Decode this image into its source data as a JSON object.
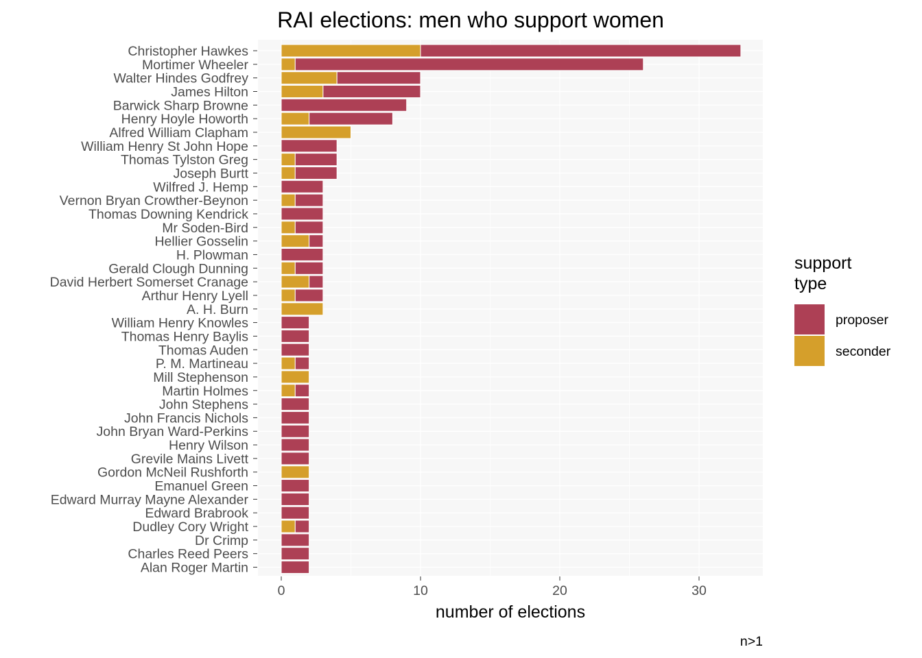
{
  "chart_data": {
    "type": "bar",
    "orientation": "horizontal",
    "stacked": true,
    "title": "RAI elections: men who support women",
    "xlabel": "number of elections",
    "ylabel": "",
    "caption": "n>1",
    "xlim": [
      0,
      34
    ],
    "xticks": [
      0,
      10,
      20,
      30
    ],
    "grid": true,
    "legend": {
      "title_lines": [
        "support",
        "type"
      ],
      "position": "right",
      "entries": [
        {
          "name": "proposer",
          "color": "#ad4055"
        },
        {
          "name": "seconder",
          "color": "#d59f2b"
        }
      ]
    },
    "categories": [
      "Christopher Hawkes",
      "Mortimer Wheeler",
      "Walter Hindes Godfrey",
      "James Hilton",
      "Barwick Sharp Browne",
      "Henry Hoyle Howorth",
      "Alfred William Clapham",
      "William Henry St John Hope",
      "Thomas Tylston Greg",
      "Joseph Burtt",
      "Wilfred J. Hemp",
      "Vernon Bryan Crowther-Beynon",
      "Thomas Downing Kendrick",
      "Mr Soden-Bird",
      "Hellier Gosselin",
      "H. Plowman",
      "Gerald Clough Dunning",
      "David Herbert Somerset Cranage",
      "Arthur Henry Lyell",
      "A. H. Burn",
      "William Henry Knowles",
      "Thomas Henry Baylis",
      "Thomas Auden",
      "P. M. Martineau",
      "Mill Stephenson",
      "Martin Holmes",
      "John Stephens",
      "John Francis Nichols",
      "John Bryan Ward-Perkins",
      "Henry Wilson",
      "Grevile Mains Livett",
      "Gordon McNeil Rushforth",
      "Emanuel Green",
      "Edward Murray Mayne Alexander",
      "Edward Brabrook",
      "Dudley Cory Wright",
      "Dr Crimp",
      "Charles Reed Peers",
      "Alan Roger Martin"
    ],
    "series": [
      {
        "name": "seconder",
        "color": "#d59f2b",
        "values": [
          10,
          1,
          4,
          3,
          0,
          2,
          5,
          0,
          1,
          1,
          0,
          1,
          0,
          1,
          2,
          0,
          1,
          2,
          1,
          3,
          0,
          0,
          0,
          1,
          2,
          1,
          0,
          0,
          0,
          0,
          0,
          2,
          0,
          0,
          0,
          1,
          0,
          0,
          0
        ]
      },
      {
        "name": "proposer",
        "color": "#ad4055",
        "values": [
          23,
          25,
          6,
          7,
          9,
          6,
          0,
          4,
          3,
          3,
          3,
          2,
          3,
          2,
          1,
          3,
          2,
          1,
          2,
          0,
          2,
          2,
          2,
          1,
          0,
          1,
          2,
          2,
          2,
          2,
          2,
          0,
          2,
          2,
          2,
          1,
          2,
          2,
          2
        ]
      }
    ]
  }
}
